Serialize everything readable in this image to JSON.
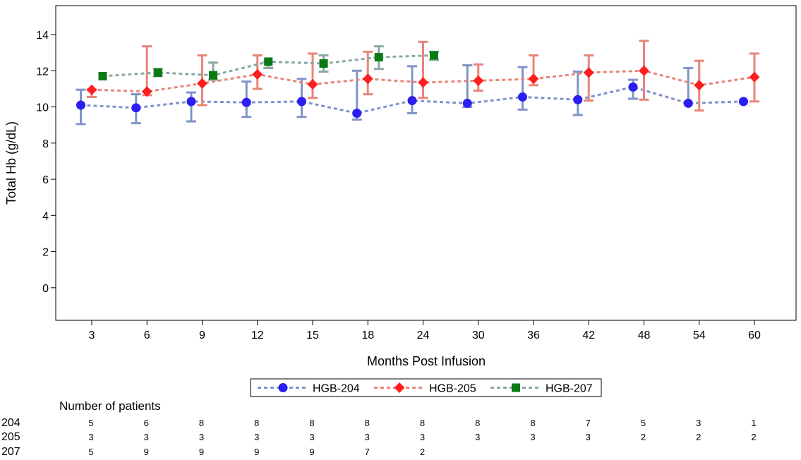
{
  "chart_data": {
    "type": "line",
    "xlabel": "Months Post Infusion",
    "ylabel": "Total Hb (g/dL)",
    "categories": [
      "3",
      "6",
      "9",
      "12",
      "15",
      "18",
      "24",
      "30",
      "36",
      "42",
      "48",
      "54",
      "60"
    ],
    "ylim": [
      -1.8,
      15.6
    ],
    "yticks": [
      "0",
      "2",
      "4",
      "6",
      "8",
      "10",
      "12",
      "14"
    ],
    "grid": false,
    "legend_position": "bottom",
    "series": [
      {
        "name": "HGB-204",
        "marker": "circle",
        "color": "#2a1ef0",
        "line_color": "#7f94c8",
        "offset": -1,
        "values": [
          10.1,
          9.95,
          10.3,
          10.25,
          10.3,
          9.65,
          10.35,
          10.2,
          10.55,
          10.4,
          11.1,
          10.2,
          10.3
        ],
        "lower": [
          9.05,
          9.1,
          9.2,
          9.45,
          9.45,
          9.3,
          9.65,
          10.0,
          9.85,
          9.55,
          10.45,
          10.2,
          10.3
        ],
        "upper": [
          10.95,
          10.7,
          10.8,
          11.4,
          11.55,
          12.0,
          12.25,
          12.3,
          12.2,
          11.95,
          11.5,
          12.15,
          10.3
        ]
      },
      {
        "name": "HGB-205",
        "marker": "diamond",
        "color": "#ff1e1e",
        "line_color": "#e8857a",
        "offset": 0,
        "values": [
          10.95,
          10.85,
          11.3,
          11.8,
          11.25,
          11.55,
          11.35,
          11.45,
          11.55,
          11.9,
          12.0,
          11.2,
          11.65
        ],
        "lower": [
          10.55,
          10.65,
          10.1,
          11.0,
          10.5,
          10.7,
          10.5,
          10.9,
          11.2,
          10.35,
          10.4,
          9.8,
          10.3
        ],
        "upper": [
          10.95,
          13.35,
          12.85,
          12.85,
          12.95,
          13.05,
          13.6,
          12.35,
          12.85,
          12.85,
          13.65,
          12.55,
          12.95
        ]
      },
      {
        "name": "HGB-207",
        "marker": "square",
        "color": "#0a7a12",
        "line_color": "#8aa8a8",
        "offset": 1,
        "values": [
          11.7,
          11.9,
          11.75,
          12.5,
          12.4,
          12.75,
          12.85,
          null,
          null,
          null,
          null,
          null,
          null
        ],
        "lower": [
          11.7,
          11.7,
          11.5,
          12.15,
          11.95,
          12.1,
          12.6,
          null,
          null,
          null,
          null,
          null,
          null
        ],
        "upper": [
          11.7,
          12.1,
          12.45,
          12.5,
          12.85,
          13.35,
          13.05,
          null,
          null,
          null,
          null,
          null,
          null
        ]
      }
    ],
    "patients": {
      "title": "Number of patients",
      "rows": [
        {
          "label": "204",
          "counts": [
            "5",
            "6",
            "8",
            "8",
            "8",
            "8",
            "8",
            "8",
            "8",
            "7",
            "5",
            "3",
            "1"
          ]
        },
        {
          "label": "205",
          "counts": [
            "3",
            "3",
            "3",
            "3",
            "3",
            "3",
            "3",
            "3",
            "3",
            "3",
            "2",
            "2",
            "2"
          ]
        },
        {
          "label": "207",
          "counts": [
            "5",
            "9",
            "9",
            "9",
            "9",
            "7",
            "2",
            "",
            "",
            "",
            "",
            "",
            ""
          ]
        }
      ]
    }
  }
}
